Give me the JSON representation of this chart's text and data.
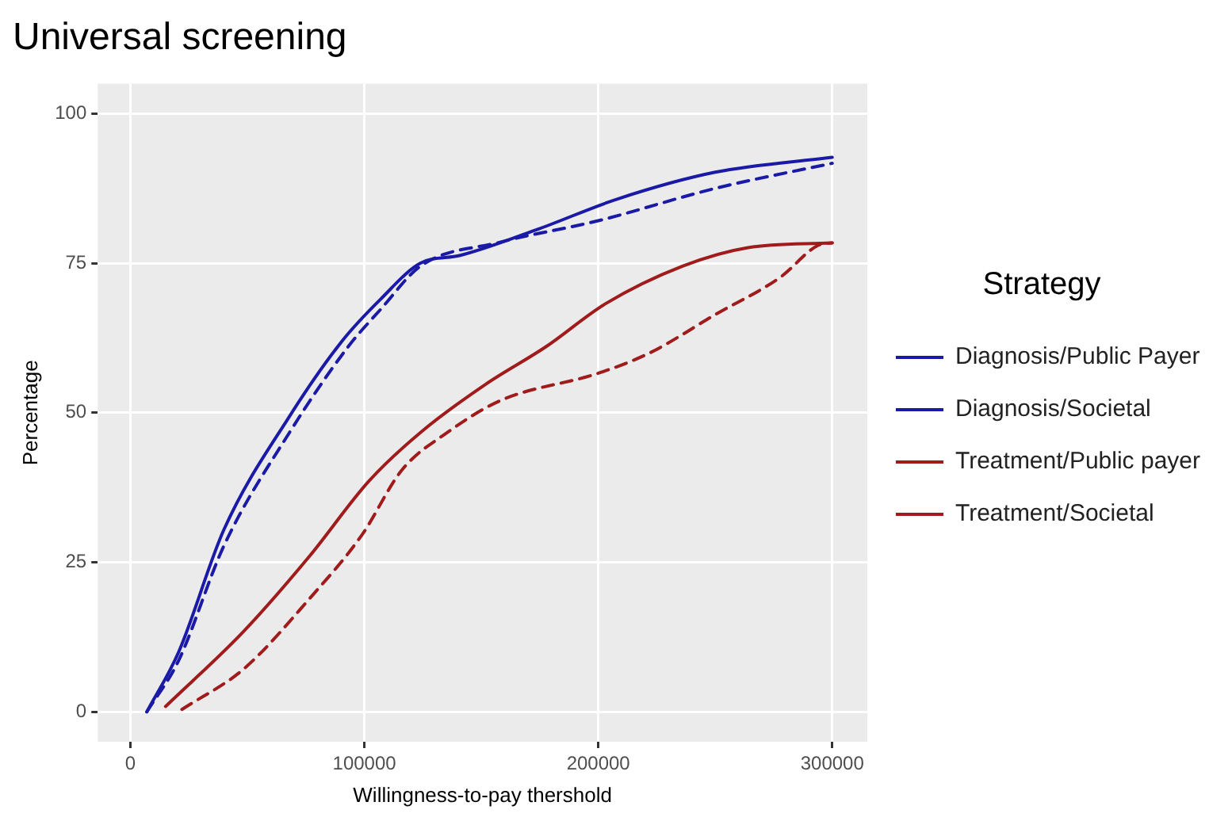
{
  "chart_data": {
    "type": "line",
    "title": "Universal screening",
    "xlabel": "Willingness-to-pay thershold",
    "ylabel": "Percentage",
    "legend_title": "Strategy",
    "legend": "right",
    "grid": true,
    "marker": "none",
    "xlim": [
      -14000,
      315000
    ],
    "xticks": [
      0,
      100000,
      200000,
      300000
    ],
    "ylim": [
      -5,
      105
    ],
    "yticks": [
      0,
      25,
      50,
      75,
      100
    ],
    "series": [
      {
        "name": "Diagnosis/Public Payer",
        "color": "#1a1aa6",
        "line_style": "solid",
        "x": [
          7000,
          20500,
          40000,
          68000,
          90500,
          107000,
          124000,
          141000,
          175000,
          208000,
          250000,
          300000
        ],
        "values": [
          0,
          9.9,
          30.5,
          49.4,
          62,
          69,
          75,
          76.3,
          80.8,
          85.7,
          90.2,
          92.7
        ]
      },
      {
        "name": "Diagnosis/Societal",
        "color": "#1a1aa6",
        "line_style": "dashed",
        "x": [
          7000,
          20500,
          40000,
          68000,
          93000,
          107000,
          124000,
          158000,
          200000,
          250000,
          300000
        ],
        "values": [
          0,
          8.5,
          27.8,
          46.7,
          61,
          67.3,
          74.5,
          78.5,
          82.1,
          87.5,
          91.7
        ]
      },
      {
        "name": "Treatment/Public payer",
        "color": "#a01c1c",
        "line_style": "solid",
        "x": [
          15000,
          48500,
          76500,
          102000,
          124000,
          152000,
          177500,
          203000,
          236000,
          264000,
          300000
        ],
        "values": [
          0.9,
          13.5,
          26,
          38.6,
          46.7,
          54.8,
          61,
          68.2,
          74.5,
          77.6,
          78.4
        ]
      },
      {
        "name": "Treatment/Societal",
        "color": "#a01c1c",
        "line_style": "dashed",
        "x": [
          22000,
          48500,
          76500,
          99000,
          116000,
          135500,
          158000,
          200000,
          222000,
          250000,
          278000,
          294000,
          300000
        ],
        "values": [
          0.4,
          7.2,
          18.9,
          29.6,
          40.4,
          46.7,
          52,
          56.6,
          60,
          66.4,
          72.7,
          78,
          78.4
        ]
      }
    ]
  }
}
